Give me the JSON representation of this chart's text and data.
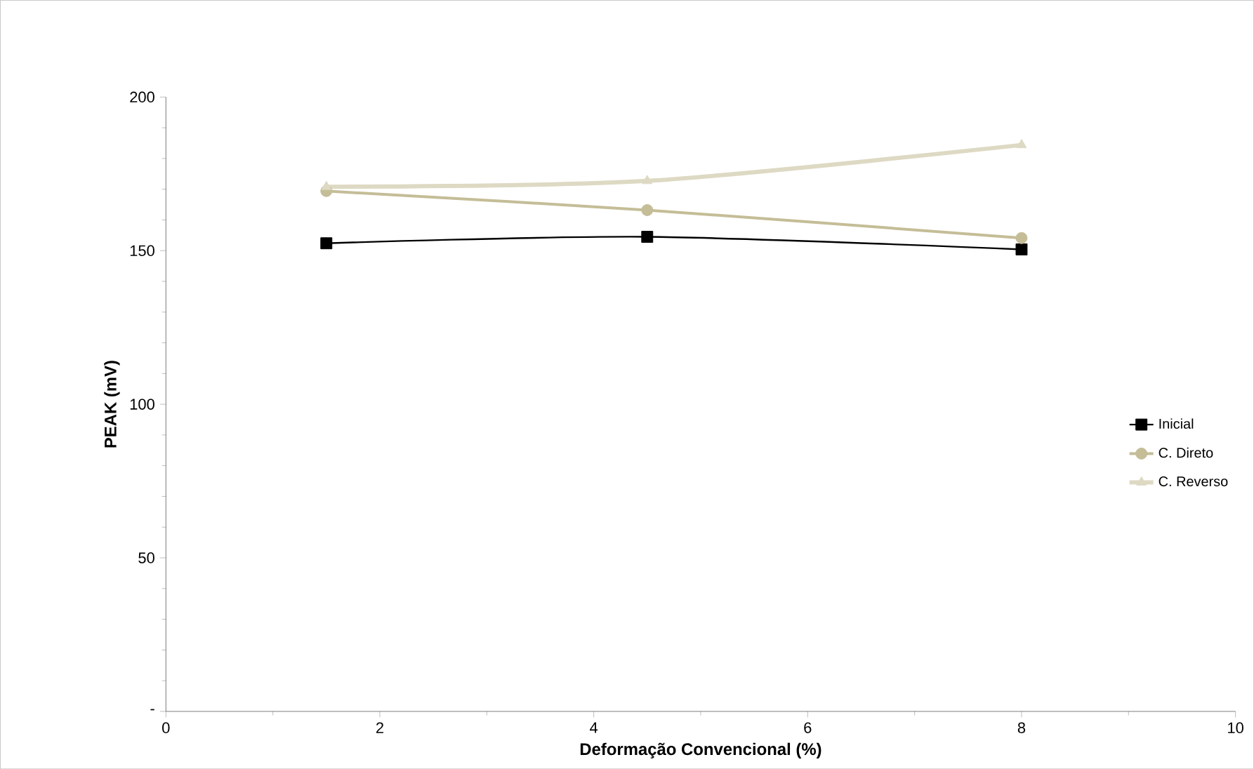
{
  "chart_data": {
    "type": "line",
    "xlabel": "Deformação Convencional (%)",
    "ylabel": "PEAK  (mV)",
    "x": [
      1.5,
      4.5,
      8
    ],
    "series": [
      {
        "name": "Inicial",
        "color": "#000000",
        "marker": "square",
        "values": [
          152.4,
          154.5,
          150.4
        ]
      },
      {
        "name": "C. Direto",
        "color": "#c4bd97",
        "marker": "circle",
        "values": [
          169.4,
          163.2,
          154.1
        ]
      },
      {
        "name": "C. Reverso",
        "color": "#ddd9c3",
        "marker": "triangle",
        "values": [
          170.8,
          172.7,
          184.4
        ]
      }
    ],
    "xlim": [
      0,
      10
    ],
    "xticks": [
      0,
      2,
      4,
      6,
      8,
      10
    ],
    "ylim": [
      0,
      200
    ],
    "yticks": [
      {
        "value": 0,
        "label": "-"
      },
      50,
      100,
      150,
      200
    ],
    "grid": false,
    "legend": "right"
  }
}
